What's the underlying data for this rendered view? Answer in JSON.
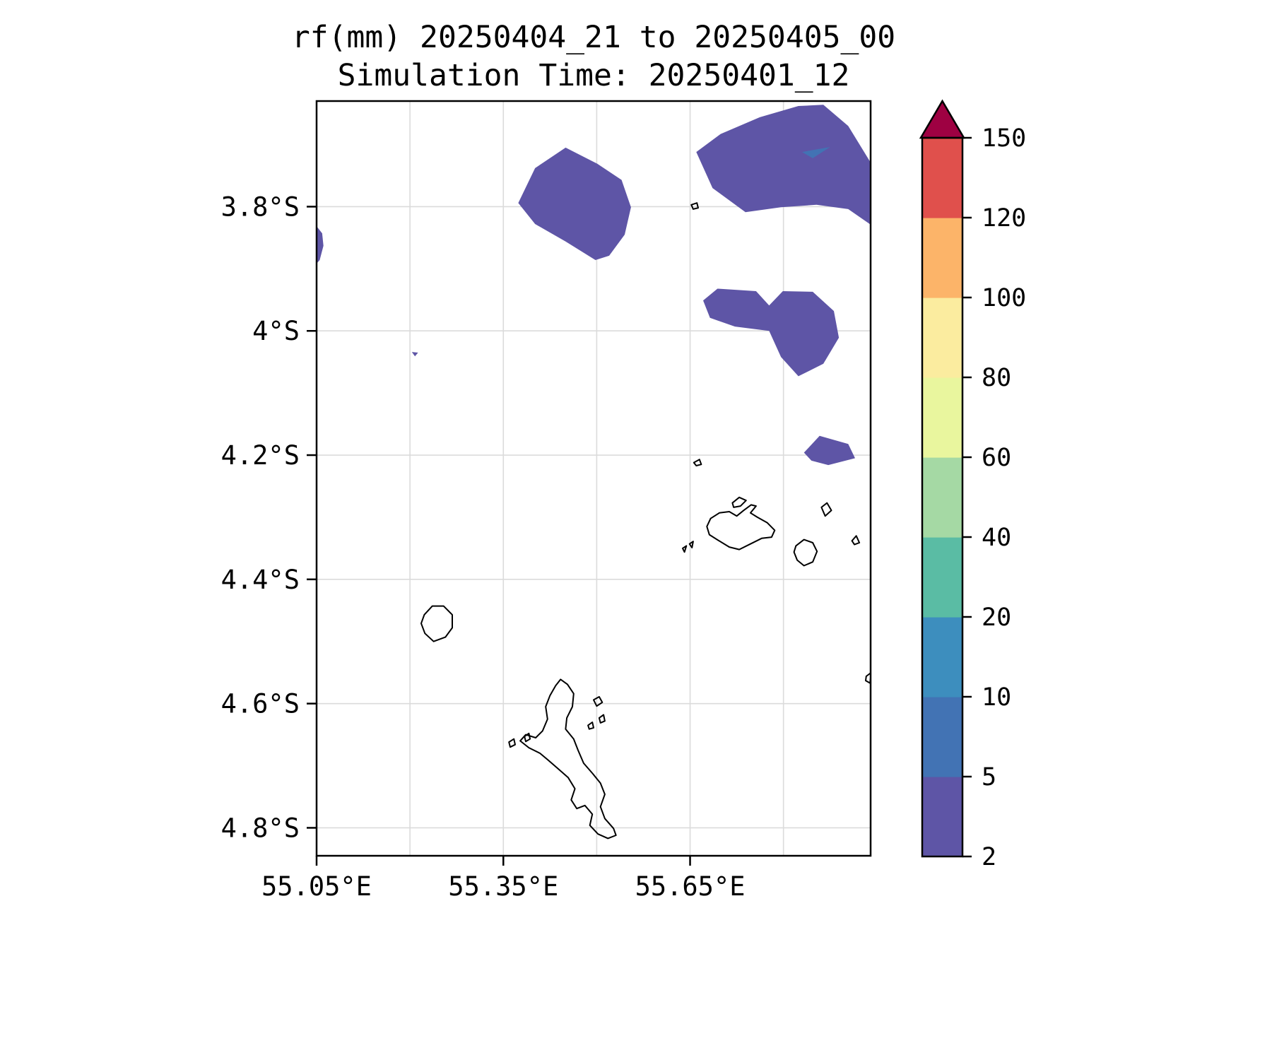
{
  "title": {
    "line1": "rf(mm) 20250404_21 to 20250405_00",
    "line2": "Simulation Time: 20250401_12"
  },
  "chart_data": {
    "type": "heatmap",
    "subtype": "filled-contour-map",
    "variable": "rf",
    "units": "mm",
    "title": "rf(mm) 20250404_21 to 20250405_00",
    "subtitle": "Simulation Time: 20250401_12",
    "lon_range": [
      55.05,
      55.94
    ],
    "lat_range_s": [
      3.63,
      4.845
    ],
    "grid_color": "#DBDBDB",
    "grid_lons": [
      55.2,
      55.35,
      55.5,
      55.65,
      55.8
    ],
    "grid_lats_s": [
      3.8,
      4.0,
      4.2,
      4.4,
      4.6,
      4.8
    ],
    "x_ticks": [
      {
        "lon": 55.05,
        "label": "55.05°E"
      },
      {
        "lon": 55.35,
        "label": "55.35°E"
      },
      {
        "lon": 55.65,
        "label": "55.65°E"
      }
    ],
    "y_ticks": [
      {
        "lat_s": 3.8,
        "label": "3.8°S"
      },
      {
        "lat_s": 4.0,
        "label": "4°S"
      },
      {
        "lat_s": 4.2,
        "label": "4.2°S"
      },
      {
        "lat_s": 4.4,
        "label": "4.4°S"
      },
      {
        "lat_s": 4.6,
        "label": "4.6°S"
      },
      {
        "lat_s": 4.8,
        "label": "4.8°S"
      }
    ],
    "colorbar": {
      "levels": [
        2,
        5,
        10,
        20,
        40,
        60,
        80,
        100,
        120,
        150
      ],
      "colors": [
        "#5E55A6",
        "#4273B4",
        "#3D8EBE",
        "#5ABCA4",
        "#A5D9A4",
        "#E9F69E",
        "#FBEC9F",
        "#FCB469",
        "#E0504C"
      ],
      "over_color": "#9E0142",
      "extend": "max"
    },
    "contour_regions": [
      {
        "id": "blob-north-central",
        "level": "2-5",
        "color_index": 0,
        "points": [
          [
            55.374,
            3.794
          ],
          [
            55.401,
            3.738
          ],
          [
            55.45,
            3.705
          ],
          [
            55.501,
            3.731
          ],
          [
            55.54,
            3.757
          ],
          [
            55.555,
            3.801
          ],
          [
            55.545,
            3.845
          ],
          [
            55.52,
            3.879
          ],
          [
            55.498,
            3.886
          ],
          [
            55.45,
            3.856
          ],
          [
            55.401,
            3.828
          ]
        ]
      },
      {
        "id": "blob-northeast",
        "level": "2-5",
        "color_index": 0,
        "points": [
          [
            55.66,
            3.712
          ],
          [
            55.699,
            3.683
          ],
          [
            55.762,
            3.656
          ],
          [
            55.824,
            3.638
          ],
          [
            55.864,
            3.636
          ],
          [
            55.904,
            3.67
          ],
          [
            55.94,
            3.729
          ],
          [
            55.94,
            3.829
          ],
          [
            55.904,
            3.804
          ],
          [
            55.853,
            3.797
          ],
          [
            55.796,
            3.801
          ],
          [
            55.739,
            3.809
          ],
          [
            55.686,
            3.77
          ]
        ]
      },
      {
        "id": "spot-northeast-inner",
        "level": "5-10",
        "color_index": 1,
        "points": [
          [
            55.83,
            3.712
          ],
          [
            55.875,
            3.704
          ],
          [
            55.847,
            3.722
          ]
        ]
      },
      {
        "id": "blob-east",
        "level": "2-5",
        "color_index": 0,
        "points": [
          [
            55.671,
            3.951
          ],
          [
            55.694,
            3.932
          ],
          [
            55.756,
            3.936
          ],
          [
            55.777,
            3.959
          ],
          [
            55.799,
            3.936
          ],
          [
            55.847,
            3.937
          ],
          [
            55.881,
            3.968
          ],
          [
            55.889,
            4.011
          ],
          [
            55.864,
            4.053
          ],
          [
            55.824,
            4.073
          ],
          [
            55.796,
            4.042
          ],
          [
            55.777,
            4.0
          ],
          [
            55.722,
            3.993
          ],
          [
            55.682,
            3.979
          ]
        ]
      },
      {
        "id": "blob-east-small",
        "level": "2-5",
        "color_index": 0,
        "points": [
          [
            55.833,
            4.196
          ],
          [
            55.858,
            4.169
          ],
          [
            55.904,
            4.182
          ],
          [
            55.915,
            4.205
          ],
          [
            55.872,
            4.216
          ],
          [
            55.845,
            4.209
          ]
        ]
      },
      {
        "id": "sliver-west-edge",
        "level": "2-5",
        "color_index": 0,
        "points": [
          [
            55.048,
            3.829
          ],
          [
            55.059,
            3.843
          ],
          [
            55.061,
            3.863
          ],
          [
            55.055,
            3.886
          ],
          [
            55.048,
            3.894
          ]
        ]
      },
      {
        "id": "dot-tiny-west",
        "level": "2-5",
        "color_index": 0,
        "points": [
          [
            55.203,
            4.034
          ],
          [
            55.213,
            4.035
          ],
          [
            55.208,
            4.041
          ]
        ]
      }
    ],
    "coastlines": [
      {
        "id": "island-large-south",
        "points": [
          [
            55.442,
            4.561
          ],
          [
            55.453,
            4.569
          ],
          [
            55.463,
            4.584
          ],
          [
            55.461,
            4.605
          ],
          [
            55.452,
            4.623
          ],
          [
            55.45,
            4.641
          ],
          [
            55.463,
            4.657
          ],
          [
            55.47,
            4.675
          ],
          [
            55.479,
            4.696
          ],
          [
            55.493,
            4.712
          ],
          [
            55.506,
            4.728
          ],
          [
            55.513,
            4.746
          ],
          [
            55.506,
            4.766
          ],
          [
            55.513,
            4.785
          ],
          [
            55.527,
            4.801
          ],
          [
            55.531,
            4.812
          ],
          [
            55.518,
            4.817
          ],
          [
            55.502,
            4.81
          ],
          [
            55.489,
            4.796
          ],
          [
            55.493,
            4.778
          ],
          [
            55.481,
            4.764
          ],
          [
            55.468,
            4.769
          ],
          [
            55.459,
            4.755
          ],
          [
            55.465,
            4.737
          ],
          [
            55.454,
            4.719
          ],
          [
            55.438,
            4.705
          ],
          [
            55.422,
            4.691
          ],
          [
            55.409,
            4.68
          ],
          [
            55.391,
            4.671
          ],
          [
            55.377,
            4.66
          ],
          [
            55.386,
            4.65
          ],
          [
            55.402,
            4.655
          ],
          [
            55.413,
            4.644
          ],
          [
            55.421,
            4.625
          ],
          [
            55.418,
            4.605
          ],
          [
            55.425,
            4.587
          ],
          [
            55.434,
            4.571
          ]
        ]
      },
      {
        "id": "island-mid-east",
        "points": [
          [
            55.677,
            4.315
          ],
          [
            55.683,
            4.302
          ],
          [
            55.697,
            4.293
          ],
          [
            55.713,
            4.291
          ],
          [
            55.725,
            4.298
          ],
          [
            55.736,
            4.289
          ],
          [
            55.748,
            4.28
          ],
          [
            55.756,
            4.282
          ],
          [
            55.747,
            4.293
          ],
          [
            55.758,
            4.3
          ],
          [
            55.774,
            4.309
          ],
          [
            55.786,
            4.321
          ],
          [
            55.781,
            4.332
          ],
          [
            55.765,
            4.334
          ],
          [
            55.747,
            4.343
          ],
          [
            55.729,
            4.352
          ],
          [
            55.713,
            4.348
          ],
          [
            55.695,
            4.337
          ],
          [
            55.681,
            4.328
          ]
        ]
      },
      {
        "id": "islet-north-of-mid-east",
        "points": [
          [
            55.718,
            4.277
          ],
          [
            55.729,
            4.268
          ],
          [
            55.74,
            4.273
          ],
          [
            55.731,
            4.282
          ],
          [
            55.72,
            4.284
          ]
        ]
      },
      {
        "id": "islet-tiny-a",
        "points": [
          [
            55.638,
            4.35
          ],
          [
            55.644,
            4.346
          ],
          [
            55.641,
            4.356
          ]
        ]
      },
      {
        "id": "islet-tiny-b",
        "points": [
          [
            55.649,
            4.343
          ],
          [
            55.655,
            4.339
          ],
          [
            55.653,
            4.349
          ]
        ]
      },
      {
        "id": "island-east-small",
        "points": [
          [
            55.82,
            4.346
          ],
          [
            55.833,
            4.336
          ],
          [
            55.847,
            4.341
          ],
          [
            55.854,
            4.355
          ],
          [
            55.847,
            4.372
          ],
          [
            55.833,
            4.378
          ],
          [
            55.822,
            4.369
          ],
          [
            55.817,
            4.356
          ]
        ]
      },
      {
        "id": "islet-northeast-small",
        "points": [
          [
            55.861,
            4.284
          ],
          [
            55.87,
            4.277
          ],
          [
            55.877,
            4.289
          ],
          [
            55.867,
            4.298
          ]
        ]
      },
      {
        "id": "islet-far-east",
        "points": [
          [
            55.91,
            4.338
          ],
          [
            55.917,
            4.33
          ],
          [
            55.922,
            4.341
          ],
          [
            55.914,
            4.344
          ]
        ]
      },
      {
        "id": "island-west-round",
        "points": [
          [
            55.223,
            4.457
          ],
          [
            55.236,
            4.443
          ],
          [
            55.254,
            4.443
          ],
          [
            55.268,
            4.457
          ],
          [
            55.268,
            4.478
          ],
          [
            55.257,
            4.493
          ],
          [
            55.238,
            4.5
          ],
          [
            55.224,
            4.487
          ],
          [
            55.218,
            4.471
          ]
        ]
      },
      {
        "id": "islet-east-of-large-1",
        "points": [
          [
            55.495,
            4.594
          ],
          [
            55.504,
            4.589
          ],
          [
            55.509,
            4.598
          ],
          [
            55.5,
            4.604
          ]
        ]
      },
      {
        "id": "islet-east-of-large-2",
        "points": [
          [
            55.504,
            4.623
          ],
          [
            55.511,
            4.618
          ],
          [
            55.513,
            4.628
          ],
          [
            55.506,
            4.631
          ]
        ]
      },
      {
        "id": "islet-east-of-large-3",
        "points": [
          [
            55.486,
            4.635
          ],
          [
            55.493,
            4.63
          ],
          [
            55.495,
            4.639
          ],
          [
            55.488,
            4.641
          ]
        ]
      },
      {
        "id": "islet-west-of-large-1",
        "points": [
          [
            55.359,
            4.662
          ],
          [
            55.367,
            4.657
          ],
          [
            55.369,
            4.666
          ],
          [
            55.361,
            4.67
          ]
        ]
      },
      {
        "id": "islet-west-of-large-2",
        "points": [
          [
            55.384,
            4.653
          ],
          [
            55.391,
            4.648
          ],
          [
            55.393,
            4.657
          ],
          [
            55.386,
            4.661
          ]
        ]
      },
      {
        "id": "islet-right-edge",
        "points": [
          [
            55.941,
            4.55
          ],
          [
            55.933,
            4.556
          ],
          [
            55.932,
            4.563
          ],
          [
            55.939,
            4.567
          ]
        ]
      },
      {
        "id": "islet-north-small",
        "points": [
          [
            55.656,
            4.212
          ],
          [
            55.665,
            4.207
          ],
          [
            55.668,
            4.215
          ],
          [
            55.66,
            4.217
          ]
        ]
      },
      {
        "id": "islet-top-small",
        "points": [
          [
            55.652,
            3.797
          ],
          [
            55.661,
            3.794
          ],
          [
            55.663,
            3.802
          ],
          [
            55.655,
            3.804
          ]
        ]
      }
    ]
  }
}
